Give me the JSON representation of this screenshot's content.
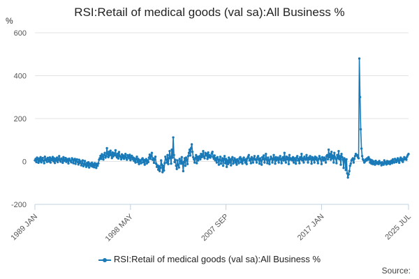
{
  "colors": {
    "series": "#1a7ab8",
    "grid": "#e3e3e3",
    "axis": "#c0d0e0",
    "text": "#555555"
  },
  "source_label": "Source:",
  "chart_data": {
    "type": "line",
    "title": "RSI:Retail of medical goods (val sa):All Business %",
    "ylabel": "%",
    "xlabel": "",
    "ylim": [
      -200,
      600
    ],
    "yticks": [
      -200,
      0,
      200,
      400,
      600
    ],
    "grid": true,
    "legend_position": "bottom",
    "x_start": "1989 JAN",
    "x_end": "2025 JUL",
    "x_ticks": [
      "1989 JAN",
      "1998 MAY",
      "2007 SEP",
      "2017 JAN",
      "2025 JUL"
    ],
    "series": [
      {
        "name": "RSI:Retail of medical goods (val sa):All Business %",
        "frequency": "monthly",
        "values": [
          5,
          12,
          -3,
          18,
          8,
          -6,
          14,
          2,
          20,
          -4,
          10,
          16,
          3,
          -8,
          22,
          6,
          11,
          -2,
          17,
          9,
          0,
          19,
          -5,
          13,
          7,
          21,
          1,
          15,
          -7,
          12,
          4,
          18,
          -3,
          9,
          25,
          6,
          -1,
          14,
          10,
          -6,
          20,
          3,
          8,
          16,
          -2,
          11,
          5,
          -9,
          13,
          7,
          2,
          -4,
          15,
          9,
          -8,
          6,
          12,
          -11,
          4,
          10,
          -3,
          -14,
          8,
          -6,
          1,
          -18,
          -9,
          5,
          -22,
          -12,
          2,
          -16,
          -25,
          -7,
          -19,
          -4,
          -28,
          -10,
          -15,
          -21,
          -6,
          -24,
          -13,
          -27,
          -8,
          -17,
          -30,
          -11,
          -20,
          -9,
          8,
          15,
          26,
          12,
          34,
          22,
          9,
          30,
          40,
          18,
          25,
          62,
          35,
          20,
          45,
          28,
          50,
          33,
          16,
          42,
          24,
          38,
          30,
          52,
          27,
          19,
          36,
          14,
          44,
          26,
          21,
          10,
          33,
          18,
          28,
          12,
          24,
          35,
          17,
          8,
          29,
          22,
          15,
          31,
          6,
          20,
          26,
          11,
          18,
          3,
          14,
          -5,
          9,
          22,
          -2,
          12,
          -12,
          6,
          1,
          -8,
          10,
          15,
          -4,
          7,
          -15,
          3,
          11,
          -9,
          5,
          -3,
          18,
          32,
          12,
          24,
          40,
          8,
          15,
          -6,
          10,
          22,
          -10,
          -25,
          -18,
          -38,
          -22,
          -45,
          -30,
          5,
          -15,
          -50,
          -20,
          -42,
          -8,
          22,
          10,
          -5,
          30,
          -12,
          15,
          48,
          20,
          -10,
          55,
          18,
          112,
          30,
          -3,
          8,
          -20,
          -35,
          5,
          -18,
          -28,
          12,
          2,
          -10,
          20,
          -8,
          -45,
          -2,
          15,
          -20,
          18,
          8,
          -12,
          25,
          40,
          55,
          28,
          62,
          80,
          45,
          20,
          10,
          -5,
          15,
          30,
          -8,
          22,
          5,
          18,
          25,
          10,
          35,
          20,
          30,
          48,
          22,
          15,
          40,
          28,
          35,
          12,
          42,
          20,
          30,
          18,
          25,
          38,
          45,
          20,
          12,
          28,
          5,
          15,
          -5,
          20,
          10,
          -15,
          8,
          22,
          -10,
          5,
          15,
          -20,
          10,
          25,
          -8,
          12,
          -25,
          5,
          -12,
          18,
          -5,
          10,
          -18,
          12,
          20,
          -10,
          5,
          15,
          -5,
          8,
          -15,
          10,
          2,
          -8,
          15,
          20,
          -3,
          12,
          -10,
          5,
          18,
          8,
          -5,
          10,
          -12,
          15,
          22,
          30,
          5,
          12,
          -8,
          20,
          10,
          -5,
          15,
          25,
          8,
          10,
          -5,
          18,
          25,
          8,
          -10,
          15,
          5,
          -15,
          20,
          10,
          28,
          -5,
          12,
          35,
          8,
          -8,
          18,
          5,
          -12,
          10,
          22,
          15,
          -5,
          8,
          30,
          12,
          -10,
          20,
          5,
          10,
          18,
          -5,
          12,
          25,
          8,
          -8,
          15,
          20,
          5,
          40,
          12,
          -5,
          22,
          10,
          18,
          -12,
          30,
          8,
          15,
          12,
          5,
          20,
          -5,
          15,
          8,
          -10,
          18,
          25,
          5,
          12,
          -8,
          20,
          10,
          35,
          5,
          15,
          -5,
          22,
          12,
          8,
          30,
          15,
          -5,
          18,
          10,
          25,
          12,
          -10,
          20,
          8,
          15,
          -5,
          22,
          10,
          18,
          5,
          -8,
          12,
          25,
          15,
          8,
          -12,
          20,
          10,
          5,
          18,
          12,
          -5,
          25,
          30,
          10,
          55,
          20,
          35,
          8,
          45,
          15,
          28,
          -5,
          40,
          20,
          12,
          -8,
          30,
          15,
          48,
          10,
          25,
          -15,
          35,
          20,
          8,
          -30,
          15,
          5,
          -40,
          10,
          -55,
          -75,
          -60,
          -45,
          -20,
          -10,
          5,
          10,
          15,
          -5,
          12,
          25,
          35,
          28,
          30,
          20,
          15,
          480,
          300,
          150,
          60,
          25,
          10,
          5,
          -5,
          0,
          10,
          5,
          15,
          8,
          20,
          12,
          -5,
          8,
          -10,
          5,
          -12,
          0,
          -8,
          -15,
          3,
          -5,
          -10,
          -3,
          -12,
          2,
          -8,
          -6,
          -18,
          -4,
          -10,
          -15,
          5,
          -8,
          -3,
          -14,
          2,
          -10,
          -6,
          0,
          -12,
          -4,
          4,
          -8,
          10,
          0,
          -5,
          12,
          6,
          -3,
          8,
          15,
          2,
          -6,
          10,
          18,
          5,
          12,
          -2,
          8,
          20,
          10,
          15,
          8,
          22,
          30,
          35
        ]
      }
    ]
  }
}
